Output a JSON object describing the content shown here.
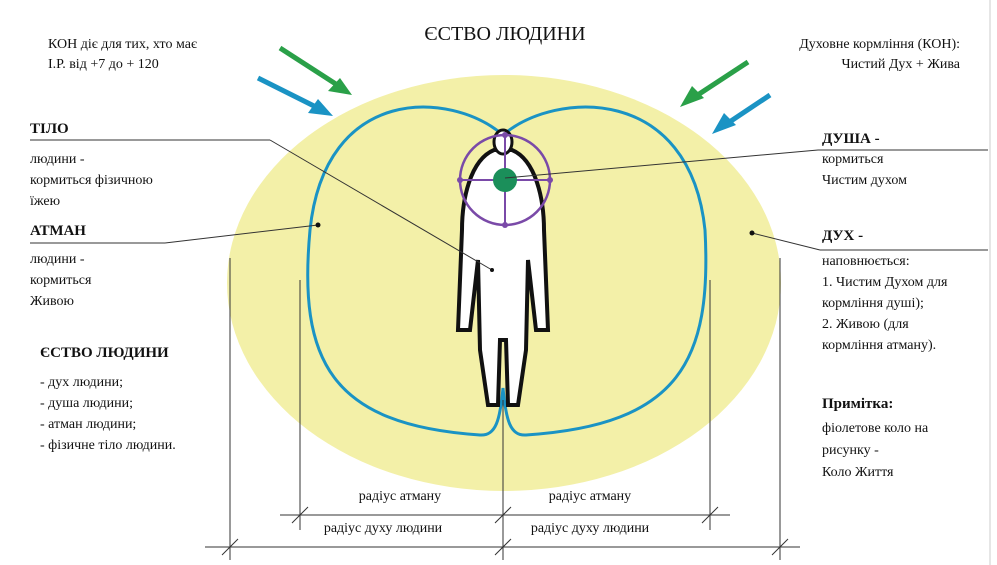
{
  "title": "ЄСТВО ЛЮДИНИ",
  "top_left": {
    "lines": [
      "КОН діє для тих, хто має",
      "І.Р. від +7 до + 120"
    ]
  },
  "top_right": {
    "lines": [
      "Духовне кормління (КОН):",
      "Чистий Дух + Жива"
    ]
  },
  "body": {
    "heading": "ТІЛО",
    "lines": [
      "людини -",
      "кормиться фізичною",
      "їжею"
    ]
  },
  "atman": {
    "heading": "АТМАН",
    "lines": [
      "людини -",
      "кормиться",
      "Живою"
    ]
  },
  "essence": {
    "heading": "ЄСТВО ЛЮДИНИ",
    "items": [
      "- дух людини;",
      "- душа людини;",
      "- атман людини;",
      "- фізичне тіло людини."
    ]
  },
  "soul": {
    "heading": "ДУША -",
    "lines": [
      "кормиться",
      "Чистим духом"
    ]
  },
  "spirit": {
    "heading": "ДУХ -",
    "lines": [
      "наповнюється:",
      "1. Чистим Духом для",
      "кормління душі);",
      "2. Живою (для",
      "кормління атману)."
    ]
  },
  "note": {
    "heading": "Примітка:",
    "lines": [
      "фіолетове коло на",
      "рисунку -",
      "Коло Життя"
    ]
  },
  "dimensions": {
    "atman_left": "радіус атману",
    "atman_right": "радіус атману",
    "spirit_left": "радіус духу людини",
    "spirit_right": "радіус духу людини"
  }
}
